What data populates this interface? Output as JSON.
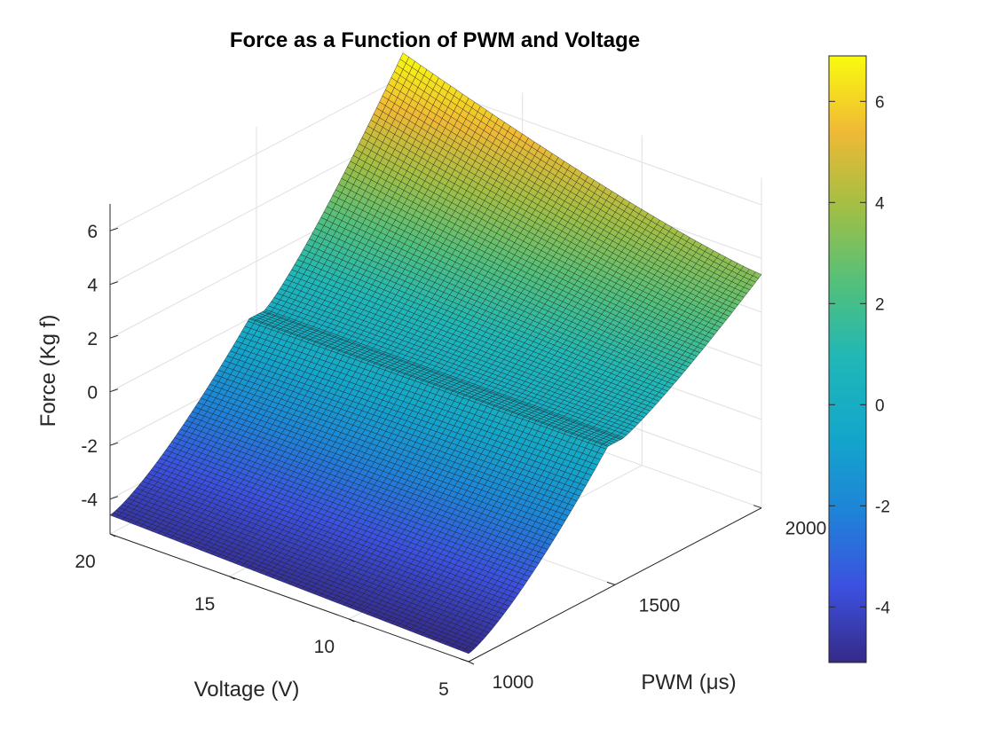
{
  "chart_data": {
    "type": "surface",
    "title": "Force as a Function of PWM and Voltage",
    "xlabel": "PWM (μs)",
    "ylabel": "Voltage (V)",
    "zlabel": "Force (Kg f)",
    "xlim": [
      1000,
      2000
    ],
    "ylim": [
      5,
      20
    ],
    "zlim": [
      -5,
      7
    ],
    "xticks": [
      "1000",
      "1500",
      "2000"
    ],
    "yticks": [
      "5",
      "10",
      "15",
      "20"
    ],
    "zticks": [
      "-4",
      "-2",
      "0",
      "2",
      "4",
      "6"
    ],
    "colorbar_ticks": [
      "-4",
      "-2",
      "0",
      "2",
      "4",
      "6"
    ],
    "colorbar_range": [
      -5.1,
      6.9
    ],
    "colormap": "parula",
    "grid": true,
    "deadband_pwm": [
      1475,
      1525
    ],
    "corner_values": [
      {
        "pwm": 1000,
        "voltage": 20,
        "force": -4.6
      },
      {
        "pwm": 1000,
        "voltage": 5,
        "force": -5.0
      },
      {
        "pwm": 1475,
        "voltage": 20,
        "force": 0.0
      },
      {
        "pwm": 1475,
        "voltage": 5,
        "force": 0.0
      },
      {
        "pwm": 1525,
        "voltage": 20,
        "force": 0.0
      },
      {
        "pwm": 1525,
        "voltage": 5,
        "force": 0.0
      },
      {
        "pwm": 2000,
        "voltage": 20,
        "force": 6.9
      },
      {
        "pwm": 2000,
        "voltage": 5,
        "force": 3.4
      }
    ],
    "colors": {
      "edge": "#1a1a1a",
      "axis": "#262626",
      "grid": "#e0e0e0"
    }
  }
}
